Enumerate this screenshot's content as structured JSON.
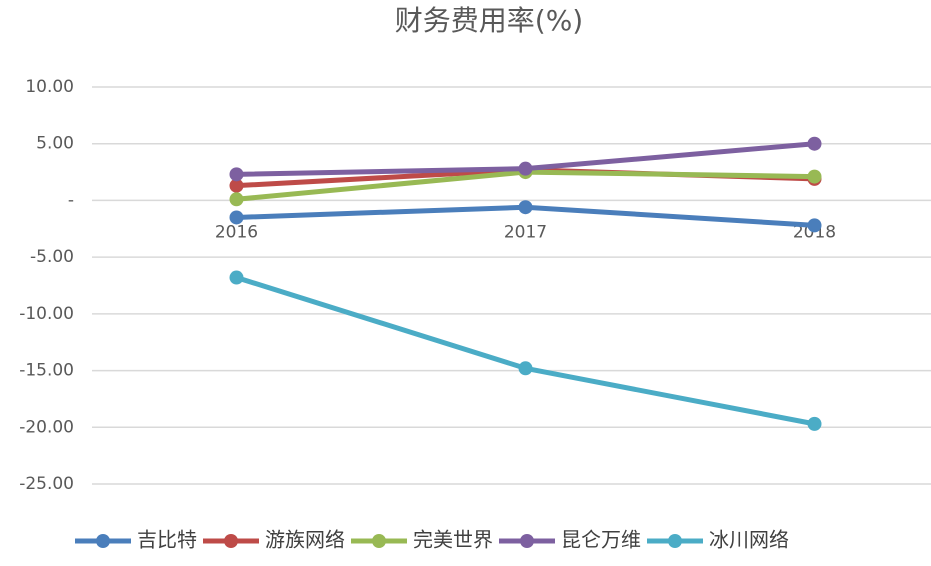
{
  "chart_data": {
    "type": "line",
    "title": "财务费用率(%)",
    "categories": [
      "2016",
      "2017",
      "2018"
    ],
    "series": [
      {
        "name": "吉比特",
        "color": "#4a7ebb",
        "values": [
          -1.5,
          -0.6,
          -2.2
        ]
      },
      {
        "name": "游族网络",
        "color": "#be4b48",
        "values": [
          1.3,
          2.7,
          1.9
        ]
      },
      {
        "name": "完美世界",
        "color": "#98b954",
        "values": [
          0.1,
          2.5,
          2.1
        ]
      },
      {
        "name": "昆仑万维",
        "color": "#7d60a0",
        "values": [
          2.3,
          2.8,
          5.0
        ]
      },
      {
        "name": "冰川网络",
        "color": "#4bacc6",
        "values": [
          -6.8,
          -14.8,
          -19.7
        ]
      }
    ],
    "ylim": [
      -25,
      10
    ],
    "yticks": [
      {
        "value": 10,
        "label": "10.00"
      },
      {
        "value": 5,
        "label": "5.00"
      },
      {
        "value": 0,
        "label": "-"
      },
      {
        "value": -5,
        "label": "-5.00"
      },
      {
        "value": -10,
        "label": "-10.00"
      },
      {
        "value": -15,
        "label": "-15.00"
      },
      {
        "value": -20,
        "label": "-20.00"
      },
      {
        "value": -25,
        "label": "-25.00"
      }
    ],
    "grid": true,
    "legend": "bottom"
  }
}
